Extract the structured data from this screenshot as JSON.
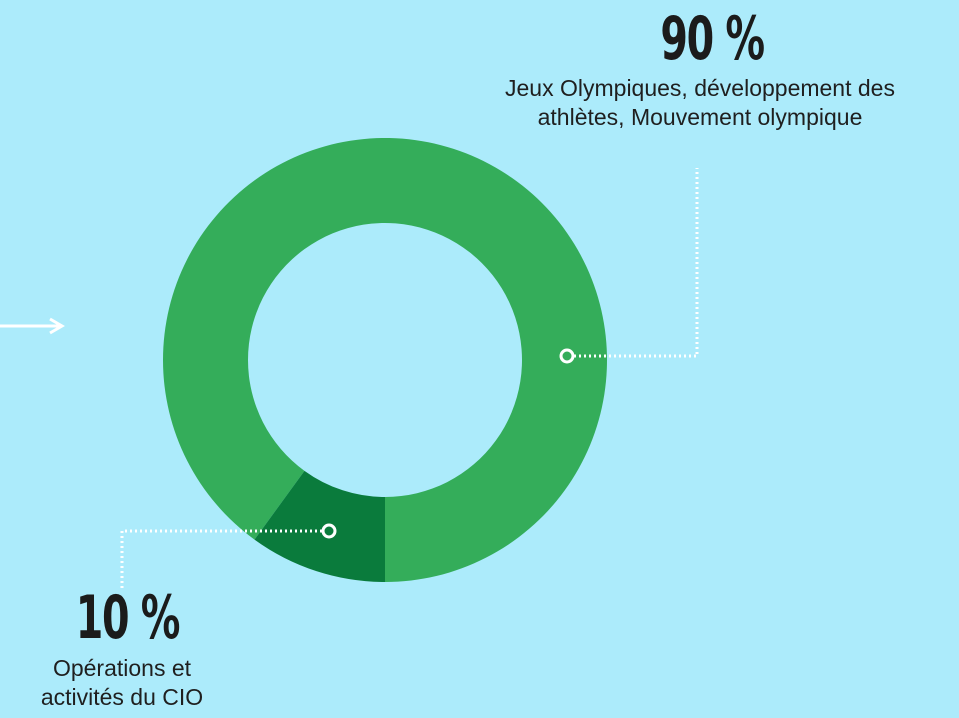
{
  "chart_data": {
    "type": "pie",
    "style": "donut",
    "title": "",
    "categories": [
      "Jeux Olympiques, développement des athlètes, Mouvement olympique",
      "Opérations et activités du CIO"
    ],
    "values": [
      90,
      10
    ],
    "unit": "%",
    "value_labels": [
      "90 %",
      "10 %"
    ],
    "colors": [
      "#34ad5a",
      "#0a7b3c"
    ],
    "background": "#acebfb",
    "legend": "none",
    "annotations": [
      "callout lines from each slice to its label"
    ]
  },
  "labels": {
    "big": {
      "pct": "90 %",
      "line1": "Jeux Olympiques, développement des",
      "line2": "athlètes, Mouvement olympique"
    },
    "small": {
      "pct": "10 %",
      "line1": "Opérations et",
      "line2": "activités du CIO"
    }
  },
  "icons": {
    "arrow": "arrow-right-icon"
  }
}
